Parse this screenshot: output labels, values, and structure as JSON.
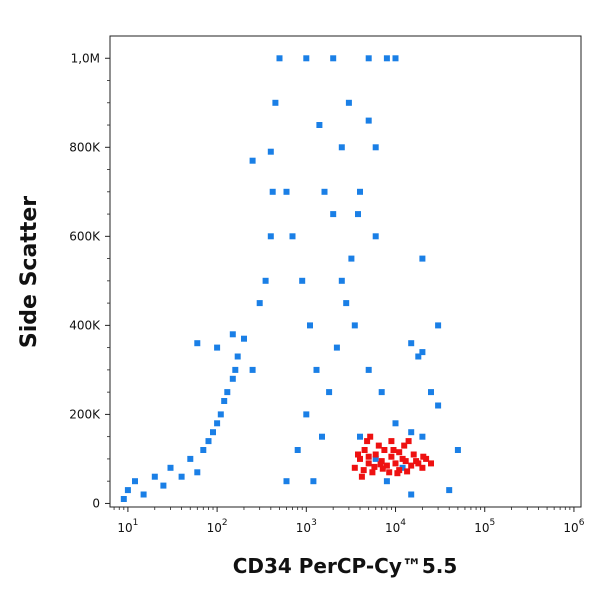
{
  "chart_data": {
    "type": "scatter",
    "title": "",
    "xlabel": "CD34 PerCP-Cy™5.5",
    "ylabel": "Side Scatter",
    "x_scale": "log",
    "xlim": [
      6.3,
      1200000
    ],
    "ylim": [
      -8000,
      1050000
    ],
    "x_ticks": [
      {
        "value": 10,
        "base": "10",
        "exp": "1"
      },
      {
        "value": 100,
        "base": "10",
        "exp": "2"
      },
      {
        "value": 1000,
        "base": "10",
        "exp": "3"
      },
      {
        "value": 10000,
        "base": "10",
        "exp": "4"
      },
      {
        "value": 100000,
        "base": "10",
        "exp": "5"
      },
      {
        "value": 1000000,
        "base": "10",
        "exp": "6"
      }
    ],
    "y_ticks": [
      {
        "value": 0,
        "label": "0"
      },
      {
        "value": 200000,
        "label": "200K"
      },
      {
        "value": 400000,
        "label": "400K"
      },
      {
        "value": 600000,
        "label": "600K"
      },
      {
        "value": 800000,
        "label": "800K"
      },
      {
        "value": 1000000,
        "label": "1,0M"
      }
    ],
    "grid": false,
    "series": [
      {
        "color": "#1a7fe6",
        "points": [
          [
            9,
            10000
          ],
          [
            10,
            30000
          ],
          [
            12,
            50000
          ],
          [
            15,
            20000
          ],
          [
            20,
            60000
          ],
          [
            25,
            40000
          ],
          [
            30,
            80000
          ],
          [
            40,
            60000
          ],
          [
            50,
            100000
          ],
          [
            60,
            70000
          ],
          [
            70,
            120000
          ],
          [
            80,
            140000
          ],
          [
            90,
            160000
          ],
          [
            100,
            180000
          ],
          [
            110,
            200000
          ],
          [
            120,
            230000
          ],
          [
            130,
            250000
          ],
          [
            150,
            280000
          ],
          [
            160,
            300000
          ],
          [
            170,
            330000
          ],
          [
            100,
            350000
          ],
          [
            60,
            360000
          ],
          [
            150,
            380000
          ],
          [
            200,
            370000
          ],
          [
            250,
            300000
          ],
          [
            300,
            450000
          ],
          [
            350,
            500000
          ],
          [
            400,
            600000
          ],
          [
            420,
            700000
          ],
          [
            400,
            790000
          ],
          [
            250,
            770000
          ],
          [
            450,
            900000
          ],
          [
            500,
            1000000
          ],
          [
            1000,
            1000000
          ],
          [
            2000,
            1000000
          ],
          [
            5000,
            1000000
          ],
          [
            8000,
            1000000
          ],
          [
            10000,
            1000000
          ],
          [
            3000,
            900000
          ],
          [
            5000,
            860000
          ],
          [
            4000,
            700000
          ],
          [
            6000,
            800000
          ],
          [
            2500,
            500000
          ],
          [
            3500,
            400000
          ],
          [
            5000,
            300000
          ],
          [
            7000,
            250000
          ],
          [
            10000,
            180000
          ],
          [
            15000,
            160000
          ],
          [
            20000,
            150000
          ],
          [
            25000,
            250000
          ],
          [
            30000,
            220000
          ],
          [
            20000,
            340000
          ],
          [
            18000,
            330000
          ],
          [
            30000,
            400000
          ],
          [
            15000,
            360000
          ],
          [
            50000,
            120000
          ],
          [
            20000,
            550000
          ],
          [
            1200,
            50000
          ],
          [
            1500,
            150000
          ],
          [
            1800,
            250000
          ],
          [
            2200,
            350000
          ],
          [
            2800,
            450000
          ],
          [
            3200,
            550000
          ],
          [
            2000,
            650000
          ],
          [
            3800,
            650000
          ],
          [
            2500,
            800000
          ],
          [
            6000,
            600000
          ],
          [
            600,
            50000
          ],
          [
            800,
            120000
          ],
          [
            1000,
            200000
          ],
          [
            1300,
            300000
          ],
          [
            1100,
            400000
          ],
          [
            900,
            500000
          ],
          [
            700,
            600000
          ],
          [
            600,
            700000
          ],
          [
            1600,
            700000
          ],
          [
            1400,
            850000
          ],
          [
            4000,
            150000
          ],
          [
            6000,
            100000
          ],
          [
            8000,
            50000
          ],
          [
            12000,
            80000
          ],
          [
            40000,
            30000
          ],
          [
            15000,
            20000
          ]
        ]
      },
      {
        "color": "#ee1111",
        "points": [
          [
            3500,
            80000
          ],
          [
            4000,
            100000
          ],
          [
            4500,
            120000
          ],
          [
            5000,
            90000
          ],
          [
            5500,
            70000
          ],
          [
            6000,
            110000
          ],
          [
            7000,
            95000
          ],
          [
            8000,
            85000
          ],
          [
            9000,
            105000
          ],
          [
            10000,
            90000
          ],
          [
            11000,
            75000
          ],
          [
            12000,
            100000
          ],
          [
            13000,
            95000
          ],
          [
            15000,
            85000
          ],
          [
            18000,
            90000
          ],
          [
            20000,
            80000
          ],
          [
            22000,
            100000
          ],
          [
            25000,
            90000
          ],
          [
            4200,
            60000
          ],
          [
            4800,
            140000
          ],
          [
            5200,
            150000
          ],
          [
            6500,
            130000
          ],
          [
            7500,
            120000
          ],
          [
            9500,
            120000
          ],
          [
            12500,
            130000
          ],
          [
            14000,
            140000
          ],
          [
            16000,
            110000
          ],
          [
            3800,
            110000
          ],
          [
            4400,
            75000
          ],
          [
            5800,
            82000
          ],
          [
            6800,
            88000
          ],
          [
            8500,
            70000
          ],
          [
            10500,
            68000
          ],
          [
            13500,
            72000
          ],
          [
            17000,
            95000
          ],
          [
            20500,
            105000
          ],
          [
            9000,
            140000
          ],
          [
            5000,
            105000
          ],
          [
            7200,
            78000
          ],
          [
            11000,
            115000
          ]
        ]
      }
    ]
  }
}
